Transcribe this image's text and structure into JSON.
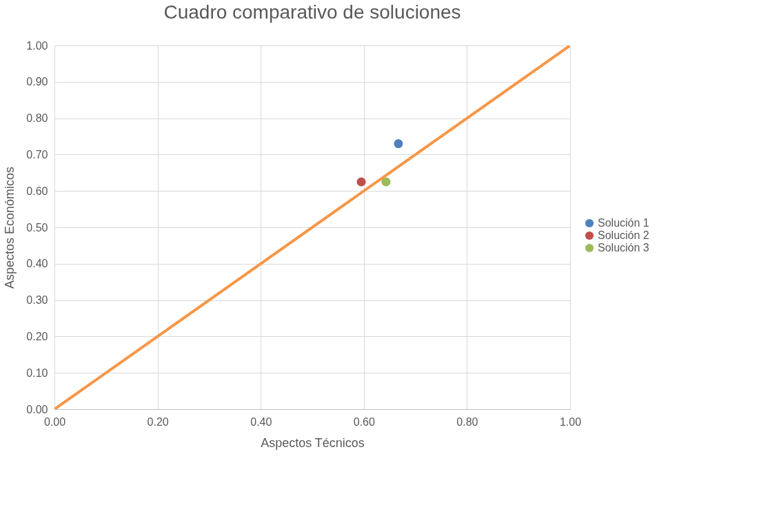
{
  "chart_data": {
    "type": "scatter",
    "title": "Cuadro comparativo de soluciones",
    "xlabel": "Aspectos Técnicos",
    "ylabel": "Aspectos Económicos",
    "xlim": [
      0,
      1
    ],
    "ylim": [
      0,
      1
    ],
    "xticks": [
      {
        "value": 0,
        "label": "0.00"
      },
      {
        "value": 0.2,
        "label": "0.20"
      },
      {
        "value": 0.4,
        "label": "0.40"
      },
      {
        "value": 0.6,
        "label": "0.60"
      },
      {
        "value": 0.8,
        "label": "0.80"
      },
      {
        "value": 1,
        "label": "1.00"
      }
    ],
    "yticks": [
      {
        "value": 0,
        "label": "0.00"
      },
      {
        "value": 0.1,
        "label": "0.10"
      },
      {
        "value": 0.2,
        "label": "0.20"
      },
      {
        "value": 0.3,
        "label": "0.30"
      },
      {
        "value": 0.4,
        "label": "0.40"
      },
      {
        "value": 0.5,
        "label": "0.50"
      },
      {
        "value": 0.6,
        "label": "0.60"
      },
      {
        "value": 0.7,
        "label": "0.70"
      },
      {
        "value": 0.8,
        "label": "0.80"
      },
      {
        "value": 0.9,
        "label": "0.90"
      },
      {
        "value": 1,
        "label": "1.00"
      }
    ],
    "grid": true,
    "legend": "right",
    "marker": "circle",
    "series": [
      {
        "name": "Solución 1",
        "color": "#4f81bd",
        "x": [
          0.667
        ],
        "values": [
          0.73
        ]
      },
      {
        "name": "Solución 2",
        "color": "#c0504d",
        "x": [
          0.595
        ],
        "values": [
          0.625
        ]
      },
      {
        "name": "Solución 3",
        "color": "#9bbb59",
        "x": [
          0.643
        ],
        "values": [
          0.625
        ]
      },
      {
        "type": "line",
        "color": "#f79646",
        "line_style": "solid",
        "marker": "none",
        "x": [
          0,
          1
        ],
        "values": [
          0,
          1
        ]
      }
    ]
  }
}
